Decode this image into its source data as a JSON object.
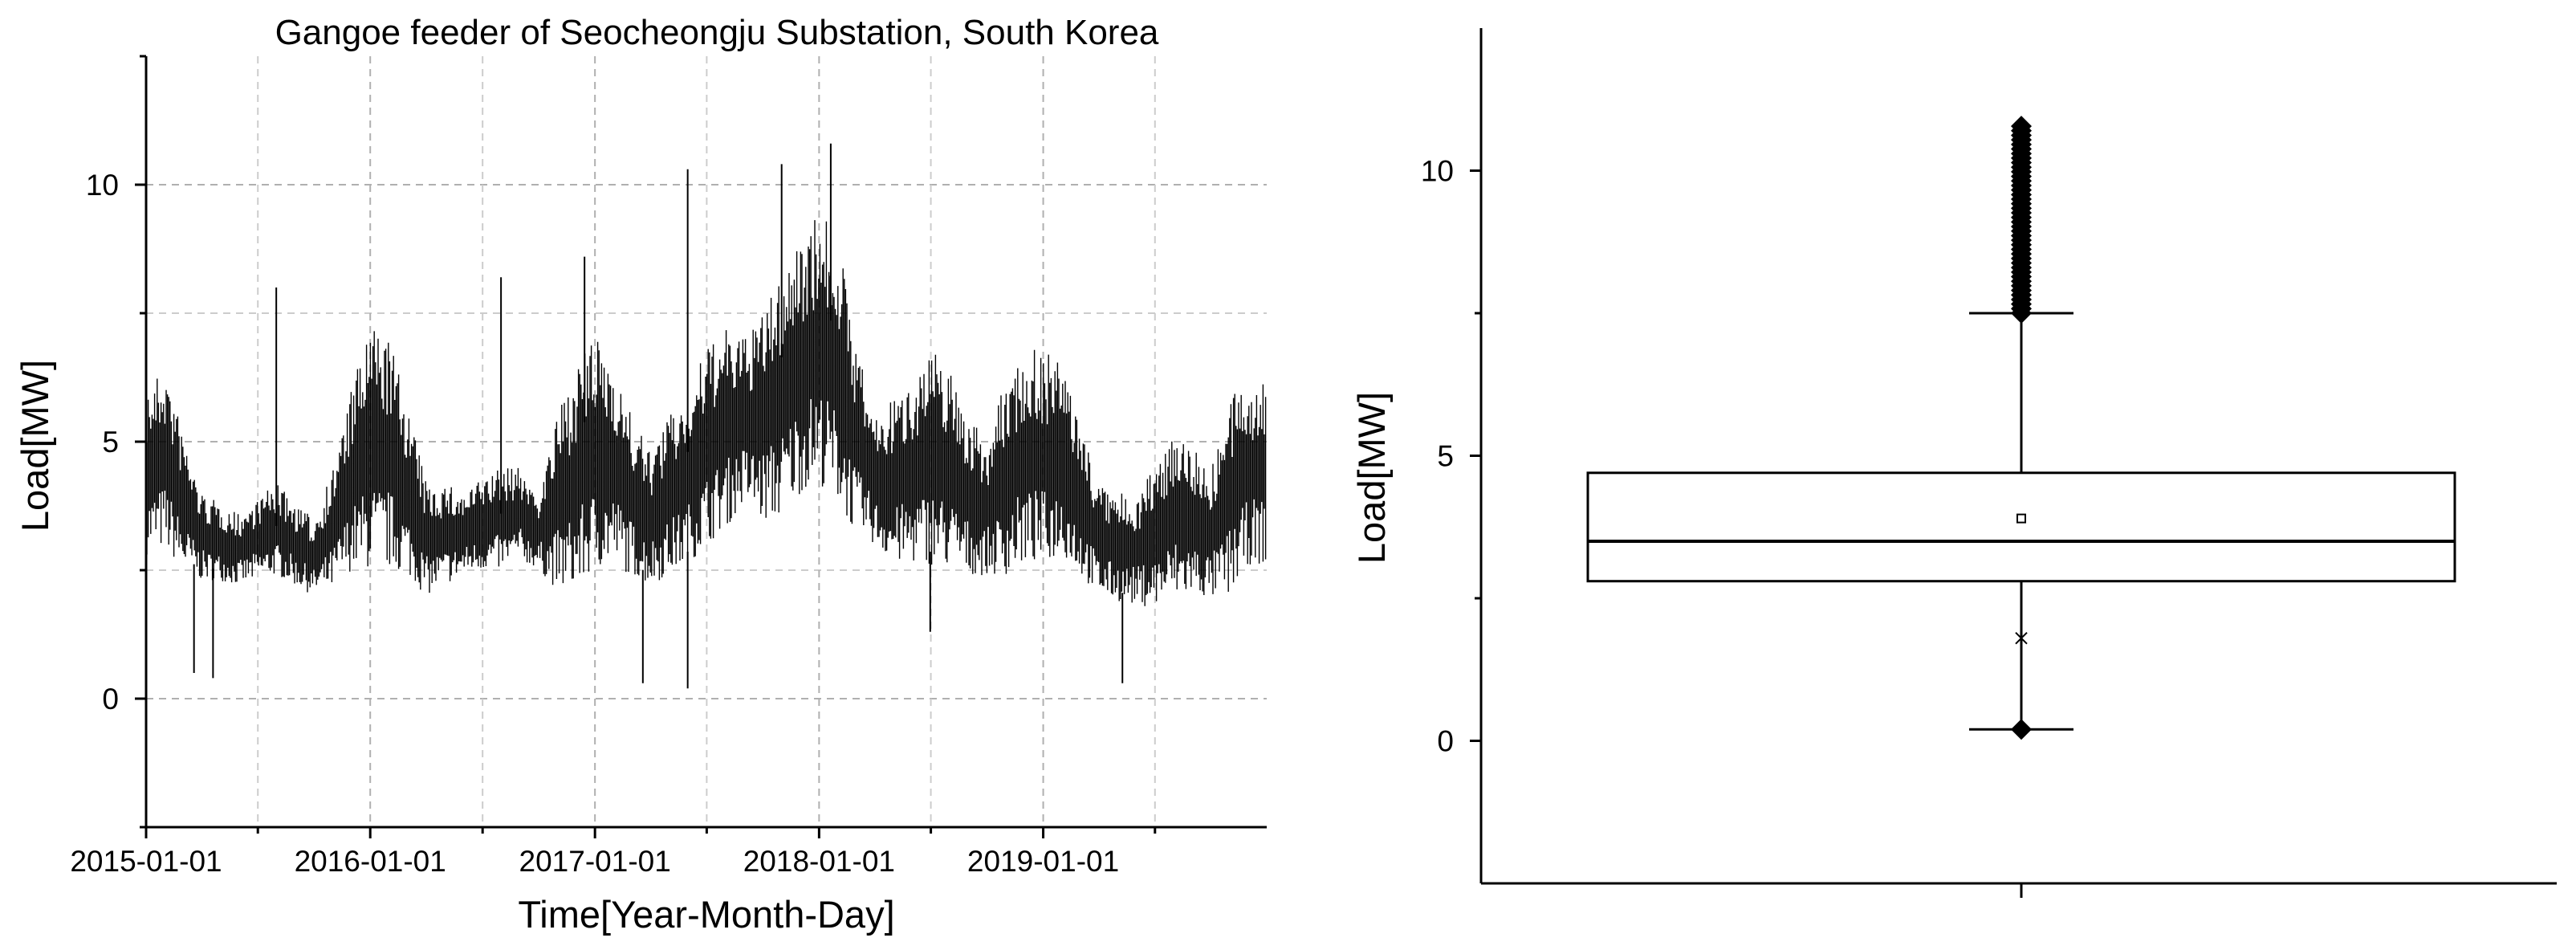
{
  "chart_data": [
    {
      "type": "line",
      "title": "Gangoe feeder of Seocheongju Substation, South Korea",
      "xlabel": "Time[Year-Month-Day]",
      "ylabel": "Load[MW]",
      "xlim": [
        "2015-01-01",
        "2019-12-31"
      ],
      "ylim": [
        -2.5,
        12.5
      ],
      "x_ticks": [
        "2015-01-01",
        "2016-01-01",
        "2017-01-01",
        "2018-01-01",
        "2019-01-01"
      ],
      "y_ticks": [
        0,
        5,
        10
      ],
      "grid": true,
      "series": [
        {
          "x": [
            "2015-01-01",
            "2015-02-01",
            "2015-03-01",
            "2015-04-01",
            "2015-05-01",
            "2015-06-01",
            "2015-07-01",
            "2015-08-01",
            "2015-09-01",
            "2015-10-01",
            "2015-11-01",
            "2015-12-01",
            "2016-01-01",
            "2016-02-01",
            "2016-03-01",
            "2016-04-01",
            "2016-05-01",
            "2016-06-01",
            "2016-07-01",
            "2016-08-01",
            "2016-09-01",
            "2016-10-01",
            "2016-11-01",
            "2016-12-01",
            "2017-01-01",
            "2017-02-01",
            "2017-03-01",
            "2017-04-01",
            "2017-05-01",
            "2017-06-01",
            "2017-07-01",
            "2017-08-01",
            "2017-09-01",
            "2017-10-01",
            "2017-11-01",
            "2017-12-01",
            "2018-01-01",
            "2018-02-01",
            "2018-03-01",
            "2018-04-01",
            "2018-05-01",
            "2018-06-01",
            "2018-07-01",
            "2018-08-01",
            "2018-09-01",
            "2018-10-01",
            "2018-11-01",
            "2018-12-01",
            "2019-01-01",
            "2019-02-01",
            "2019-03-01",
            "2019-04-01",
            "2019-05-01",
            "2019-06-01",
            "2019-07-01",
            "2019-08-01",
            "2019-09-01",
            "2019-10-01",
            "2019-11-01",
            "2019-12-01"
          ],
          "y_min": [
            2.8,
            2.9,
            2.5,
            2.3,
            2.3,
            2.2,
            2.3,
            2.4,
            2.2,
            2.0,
            2.1,
            2.5,
            2.5,
            2.5,
            2.4,
            2.0,
            2.2,
            2.4,
            2.5,
            2.5,
            2.7,
            2.5,
            2.1,
            2.1,
            2.5,
            2.6,
            2.4,
            2.2,
            2.4,
            2.6,
            3.0,
            3.3,
            3.8,
            3.4,
            3.5,
            4.0,
            4.2,
            3.8,
            3.2,
            3.0,
            2.6,
            2.6,
            2.6,
            2.5,
            2.4,
            2.4,
            2.4,
            2.6,
            2.6,
            2.8,
            2.4,
            2.0,
            1.9,
            1.8,
            1.8,
            1.9,
            2.0,
            1.9,
            2.0,
            2.6
          ],
          "y_max": [
            6.0,
            6.5,
            5.2,
            4.0,
            3.8,
            3.6,
            3.9,
            4.2,
            3.8,
            3.5,
            4.5,
            6.0,
            7.3,
            7.0,
            5.8,
            4.2,
            4.2,
            4.0,
            4.3,
            4.5,
            4.5,
            4.0,
            5.5,
            6.5,
            7.0,
            6.6,
            5.5,
            4.8,
            5.5,
            6.0,
            6.8,
            7.2,
            7.0,
            7.5,
            8.3,
            9.0,
            9.5,
            9.0,
            7.0,
            5.5,
            5.8,
            6.3,
            6.8,
            6.5,
            5.5,
            5.0,
            6.2,
            6.8,
            6.8,
            6.5,
            5.5,
            4.2,
            4.0,
            4.0,
            4.5,
            5.3,
            5.0,
            4.5,
            5.8,
            6.3
          ],
          "spikes": [
            {
              "x": "2015-08-01",
              "y": 8.0
            },
            {
              "x": "2016-08-01",
              "y": 8.2
            },
            {
              "x": "2016-12-15",
              "y": 8.6
            },
            {
              "x": "2017-06-01",
              "y": 10.3
            },
            {
              "x": "2017-11-01",
              "y": 10.4
            },
            {
              "x": "2018-01-20",
              "y": 10.8
            },
            {
              "x": "2015-03-20",
              "y": 0.5
            },
            {
              "x": "2015-04-20",
              "y": 0.4
            },
            {
              "x": "2017-03-20",
              "y": 0.3
            },
            {
              "x": "2017-06-01",
              "y": 0.2
            },
            {
              "x": "2018-07-01",
              "y": 1.3
            },
            {
              "x": "2019-05-10",
              "y": 0.3
            }
          ]
        }
      ]
    },
    {
      "type": "box",
      "ylabel": "Load[MW]",
      "ylim": [
        -2.5,
        12.5
      ],
      "y_ticks": [
        0,
        5,
        10
      ],
      "grid": false,
      "box": {
        "q1": 2.8,
        "median": 3.5,
        "q3": 4.7,
        "mean": 3.9,
        "whisker_low": 0.2,
        "whisker_high": 7.5,
        "low_marker": 1.8,
        "outliers_high_range": [
          7.5,
          10.8
        ],
        "outliers_low": [
          0.2
        ]
      }
    }
  ]
}
